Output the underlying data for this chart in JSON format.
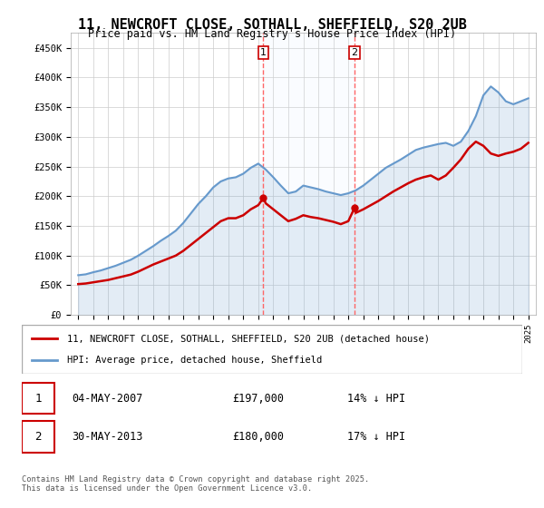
{
  "title": "11, NEWCROFT CLOSE, SOTHALL, SHEFFIELD, S20 2UB",
  "subtitle": "Price paid vs. HM Land Registry's House Price Index (HPI)",
  "legend_line1": "11, NEWCROFT CLOSE, SOTHALL, SHEFFIELD, S20 2UB (detached house)",
  "legend_line2": "HPI: Average price, detached house, Sheffield",
  "footer": "Contains HM Land Registry data © Crown copyright and database right 2025.\nThis data is licensed under the Open Government Licence v3.0.",
  "sale1_date": "04-MAY-2007",
  "sale1_price": "£197,000",
  "sale1_hpi": "14% ↓ HPI",
  "sale2_date": "30-MAY-2013",
  "sale2_price": "£180,000",
  "sale2_hpi": "17% ↓ HPI",
  "color_house": "#cc0000",
  "color_hpi": "#6699cc",
  "color_shade": "#ddeeff",
  "ylim": [
    0,
    475000
  ],
  "yticks": [
    0,
    50000,
    100000,
    150000,
    200000,
    250000,
    300000,
    350000,
    400000,
    450000
  ],
  "ytick_labels": [
    "£0",
    "£50K",
    "£100K",
    "£150K",
    "£200K",
    "£250K",
    "£300K",
    "£350K",
    "£400K",
    "£450K"
  ],
  "sale1_x": 2007.34,
  "sale1_y": 197000,
  "sale2_x": 2013.41,
  "sale2_y": 180000,
  "vline1_x": 2007.34,
  "vline2_x": 2013.41,
  "hpi_years": [
    1995.0,
    1995.5,
    1996.0,
    1996.5,
    1997.0,
    1997.5,
    1998.0,
    1998.5,
    1999.0,
    1999.5,
    2000.0,
    2000.5,
    2001.0,
    2001.5,
    2002.0,
    2002.5,
    2003.0,
    2003.5,
    2004.0,
    2004.5,
    2005.0,
    2005.5,
    2006.0,
    2006.5,
    2007.0,
    2007.5,
    2008.0,
    2008.5,
    2009.0,
    2009.5,
    2010.0,
    2010.5,
    2011.0,
    2011.5,
    2012.0,
    2012.5,
    2013.0,
    2013.5,
    2014.0,
    2014.5,
    2015.0,
    2015.5,
    2016.0,
    2016.5,
    2017.0,
    2017.5,
    2018.0,
    2018.5,
    2019.0,
    2019.5,
    2020.0,
    2020.5,
    2021.0,
    2021.5,
    2022.0,
    2022.5,
    2023.0,
    2023.5,
    2024.0,
    2024.5,
    2025.0
  ],
  "hpi_values": [
    67000,
    68500,
    72000,
    75000,
    79000,
    83000,
    88000,
    93000,
    100000,
    108000,
    116000,
    125000,
    133000,
    142000,
    155000,
    171000,
    187000,
    200000,
    215000,
    225000,
    230000,
    232000,
    238000,
    248000,
    255000,
    245000,
    232000,
    218000,
    205000,
    208000,
    218000,
    215000,
    212000,
    208000,
    205000,
    202000,
    205000,
    210000,
    218000,
    228000,
    238000,
    248000,
    255000,
    262000,
    270000,
    278000,
    282000,
    285000,
    288000,
    290000,
    285000,
    292000,
    310000,
    335000,
    370000,
    385000,
    375000,
    360000,
    355000,
    360000,
    365000
  ],
  "house_years": [
    1995.0,
    1995.5,
    1996.0,
    1996.5,
    1997.0,
    1997.5,
    1998.0,
    1998.5,
    1999.0,
    1999.5,
    2000.0,
    2000.5,
    2001.0,
    2001.5,
    2002.0,
    2002.5,
    2003.0,
    2003.5,
    2004.0,
    2004.5,
    2005.0,
    2005.5,
    2006.0,
    2006.5,
    2007.0,
    2007.34,
    2007.5,
    2008.0,
    2008.5,
    2009.0,
    2009.5,
    2010.0,
    2010.5,
    2011.0,
    2011.5,
    2012.0,
    2012.5,
    2013.0,
    2013.41,
    2013.5,
    2014.0,
    2014.5,
    2015.0,
    2015.5,
    2016.0,
    2016.5,
    2017.0,
    2017.5,
    2018.0,
    2018.5,
    2019.0,
    2019.5,
    2020.0,
    2020.5,
    2021.0,
    2021.5,
    2022.0,
    2022.5,
    2023.0,
    2023.5,
    2024.0,
    2024.5,
    2025.0
  ],
  "house_values": [
    52000,
    53000,
    55000,
    57000,
    59000,
    62000,
    65000,
    68000,
    73000,
    79000,
    85000,
    90000,
    95000,
    100000,
    108000,
    118000,
    128000,
    138000,
    148000,
    158000,
    163000,
    163000,
    168000,
    178000,
    185000,
    197000,
    188000,
    178000,
    168000,
    158000,
    162000,
    168000,
    165000,
    163000,
    160000,
    157000,
    153000,
    158000,
    180000,
    172000,
    178000,
    185000,
    192000,
    200000,
    208000,
    215000,
    222000,
    228000,
    232000,
    235000,
    228000,
    235000,
    248000,
    262000,
    280000,
    292000,
    285000,
    272000,
    268000,
    272000,
    275000,
    280000,
    290000
  ],
  "xticks": [
    1995,
    1996,
    1997,
    1998,
    1999,
    2000,
    2001,
    2002,
    2003,
    2004,
    2005,
    2006,
    2007,
    2008,
    2009,
    2010,
    2011,
    2012,
    2013,
    2014,
    2015,
    2016,
    2017,
    2018,
    2019,
    2020,
    2021,
    2022,
    2023,
    2024,
    2025
  ],
  "xlim": [
    1994.5,
    2025.5
  ]
}
